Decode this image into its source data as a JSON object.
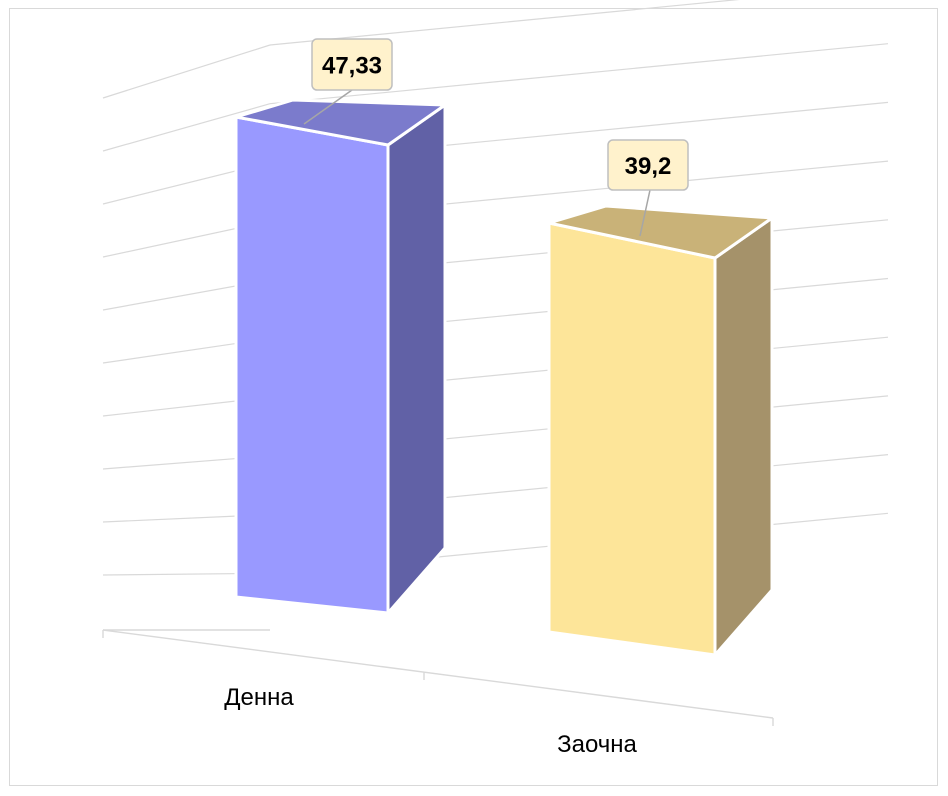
{
  "chart_data": {
    "type": "bar",
    "categories": [
      "Денна",
      "Заочна"
    ],
    "values": [
      47.33,
      39.2
    ],
    "data_labels": [
      "47,33",
      "39,2"
    ],
    "ylim": [
      0,
      50
    ],
    "grid": true,
    "legend": "none",
    "title": "",
    "xlabel": "",
    "ylabel": "",
    "colors": {
      "bars": [
        {
          "front": "#9999ff",
          "side": "#6161a6",
          "top": "#7b7bcc"
        },
        {
          "front": "#fde599",
          "side": "#a5926a",
          "top": "#c9b278"
        }
      ],
      "grid": "#d9d9d9",
      "label_fill": "#fff2cc",
      "label_border": "#bfbfbf"
    }
  }
}
